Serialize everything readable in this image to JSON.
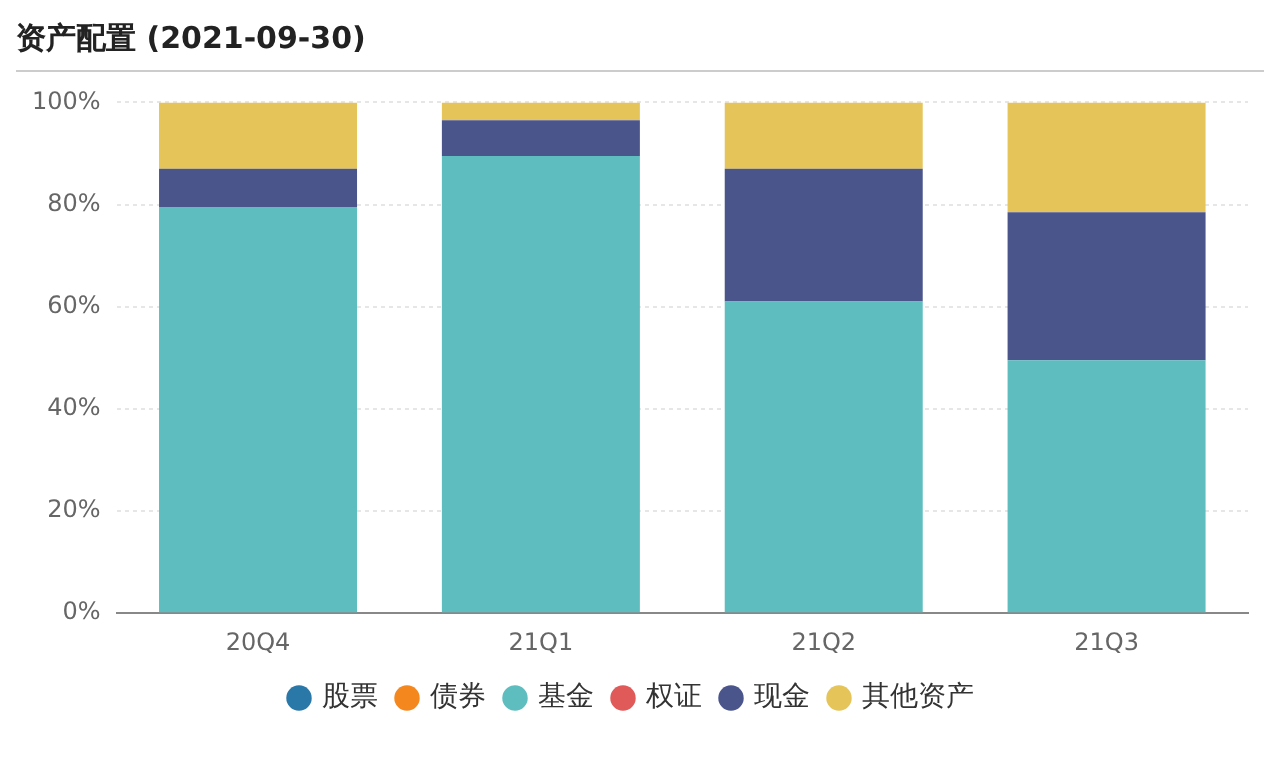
{
  "chart_data": {
    "type": "bar",
    "title": "资产配置 (2021-09-30)",
    "stacked": true,
    "categories": [
      "20Q4",
      "21Q1",
      "21Q2",
      "21Q3"
    ],
    "series": [
      {
        "name": "股票",
        "color": "#2a78a8",
        "values": [
          0,
          0,
          0,
          0
        ]
      },
      {
        "name": "债券",
        "color": "#f5871f",
        "values": [
          0,
          0,
          0,
          0
        ]
      },
      {
        "name": "基金",
        "color": "#5dbdbf",
        "values": [
          79.5,
          89.5,
          61,
          49.5
        ]
      },
      {
        "name": "权证",
        "color": "#e05a5a",
        "values": [
          0,
          0,
          0,
          0
        ]
      },
      {
        "name": "现金",
        "color": "#4a558c",
        "values": [
          7.5,
          7,
          26,
          29
        ]
      },
      {
        "name": "其他资产",
        "color": "#e5c45a",
        "values": [
          13,
          3.5,
          13,
          21.5
        ]
      }
    ],
    "ylim": [
      0,
      100
    ],
    "yticks": [
      {
        "value": 0,
        "label": "0%"
      },
      {
        "value": 20,
        "label": "20%"
      },
      {
        "value": 40,
        "label": "40%"
      },
      {
        "value": 60,
        "label": "60%"
      },
      {
        "value": 80,
        "label": "80%"
      },
      {
        "value": 100,
        "label": "100%"
      }
    ],
    "grid": "y",
    "legend": "bottom"
  }
}
